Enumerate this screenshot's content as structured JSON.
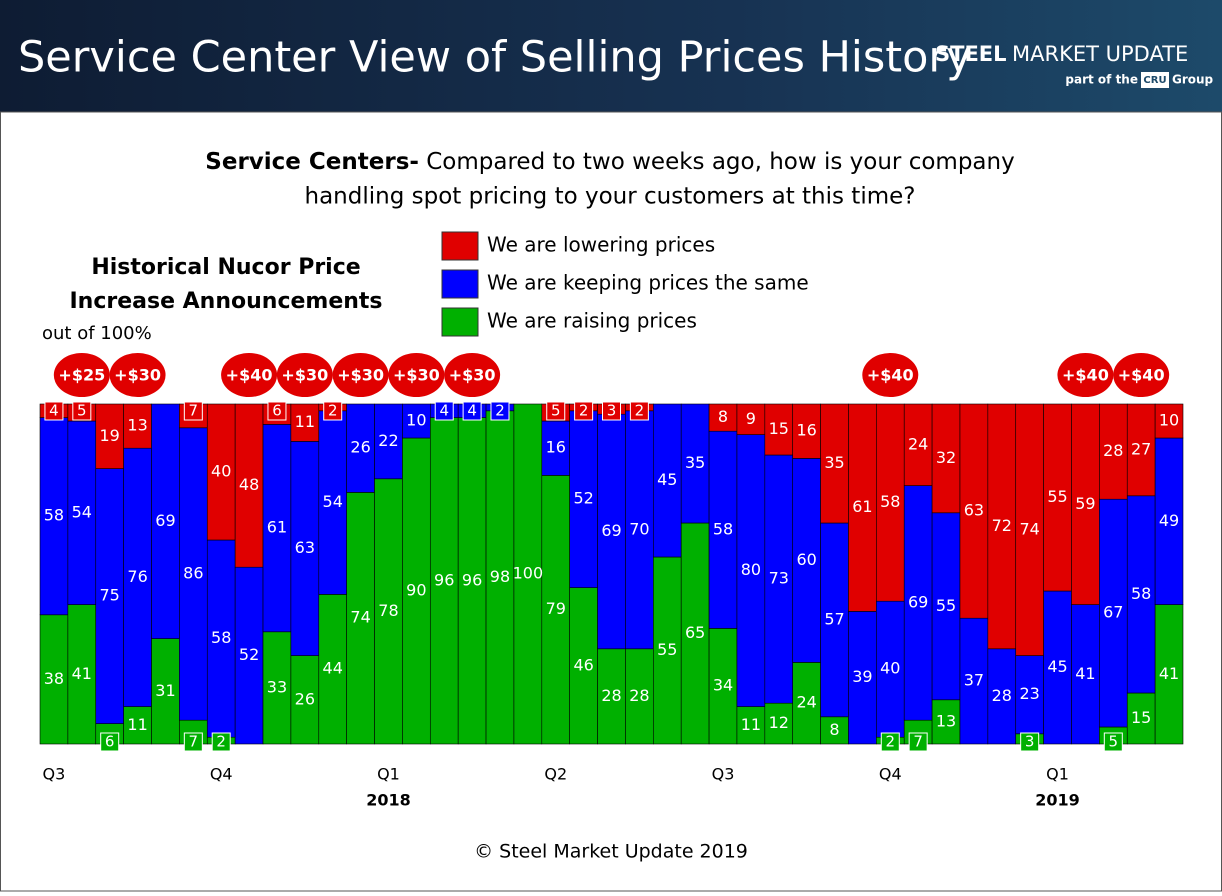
{
  "chart_data": {
    "type": "stacked-bar",
    "title": "Service Center View of Selling Prices History",
    "subtitle_lead": "Service Centers-",
    "subtitle_line1": "Compared to two weeks ago, how is your company",
    "subtitle_line2": "handling spot pricing to your customers at this time?",
    "side_title_line1": "Historical Nucor Price",
    "side_title_line2": "Increase Announcements",
    "unit_note": "out of 100%",
    "footer": "© Steel Market Update 2019",
    "categories": [
      "Q3",
      null,
      null,
      null,
      null,
      null,
      "Q4",
      null,
      null,
      null,
      null,
      null,
      "Q1",
      null,
      null,
      null,
      null,
      null,
      "Q2",
      null,
      null,
      null,
      null,
      null,
      "Q3",
      null,
      null,
      null,
      null,
      null,
      "Q4",
      null,
      null,
      null,
      null,
      null,
      "Q1",
      null,
      null,
      null,
      null
    ],
    "years": [
      null,
      null,
      null,
      null,
      null,
      null,
      null,
      null,
      null,
      null,
      null,
      null,
      "2018",
      null,
      null,
      null,
      null,
      null,
      null,
      null,
      null,
      null,
      null,
      null,
      null,
      null,
      null,
      null,
      null,
      null,
      null,
      null,
      null,
      null,
      null,
      null,
      "2019",
      null,
      null,
      null,
      null
    ],
    "announcements": [
      null,
      "+$25",
      null,
      "+$30",
      null,
      null,
      null,
      "+$40",
      null,
      "+$30",
      null,
      "+$30",
      null,
      "+$30",
      null,
      "+$30",
      null,
      null,
      null,
      null,
      null,
      null,
      null,
      null,
      null,
      null,
      null,
      null,
      null,
      null,
      "+$40",
      null,
      null,
      null,
      null,
      null,
      null,
      "+$40",
      null,
      "+$40",
      null
    ],
    "ylim": [
      0,
      100
    ],
    "series": [
      {
        "name": "We are raising prices",
        "color": "#00b000",
        "values": [
          38,
          41,
          6,
          11,
          31,
          7,
          2,
          0,
          33,
          26,
          44,
          74,
          78,
          90,
          96,
          96,
          98,
          100,
          79,
          46,
          28,
          28,
          55,
          65,
          34,
          11,
          12,
          24,
          8,
          0,
          2,
          7,
          13,
          0,
          0,
          3,
          0,
          0,
          5,
          15,
          41
        ]
      },
      {
        "name": "We are keeping prices the same",
        "color": "#0000ff",
        "values": [
          58,
          54,
          75,
          76,
          69,
          86,
          58,
          52,
          61,
          63,
          54,
          26,
          22,
          10,
          4,
          4,
          2,
          0,
          16,
          52,
          69,
          70,
          45,
          35,
          58,
          80,
          73,
          60,
          57,
          39,
          40,
          69,
          55,
          37,
          28,
          23,
          45,
          41,
          67,
          58,
          49
        ]
      },
      {
        "name": "We are lowering prices",
        "color": "#e00000",
        "values": [
          4,
          5,
          19,
          13,
          0,
          7,
          40,
          48,
          6,
          11,
          2,
          0,
          0,
          0,
          0,
          0,
          0,
          0,
          5,
          2,
          3,
          2,
          0,
          0,
          8,
          9,
          15,
          16,
          35,
          61,
          58,
          24,
          32,
          63,
          72,
          74,
          55,
          59,
          28,
          27,
          10
        ]
      }
    ]
  },
  "logo": {
    "brand_bold": "STEEL",
    "brand_rest": "MARKET UPDATE",
    "tagline": "part of the",
    "cru": "CRU",
    "group": "Group"
  }
}
